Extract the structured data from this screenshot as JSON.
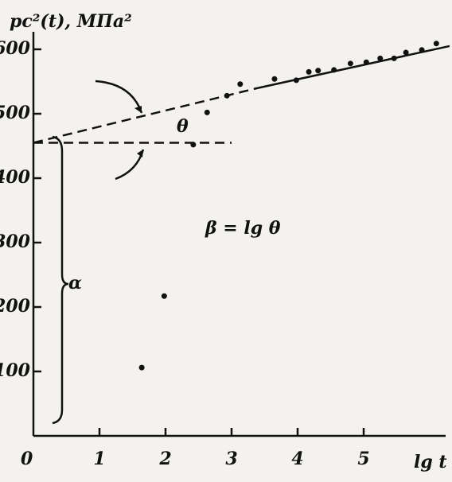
{
  "chart_data": {
    "type": "scatter",
    "y_label": "pc²(t), МПа²",
    "x_label": "lg t",
    "origin_label": "0",
    "x": [
      1.64,
      1.98,
      2.42,
      2.63,
      2.93,
      3.13,
      3.65,
      3.98,
      4.17,
      4.31,
      4.55,
      4.8,
      5.04,
      5.25,
      5.46,
      5.64,
      5.88,
      6.1
    ],
    "values": [
      106,
      217,
      452,
      502,
      528,
      546,
      554,
      552,
      565,
      567,
      568,
      578,
      580,
      586,
      586,
      595,
      599,
      609
    ],
    "color": "#111",
    "lines": [
      {
        "x": [
          0,
          3.4
        ],
        "y": [
          455,
          540
        ],
        "style": "dashed"
      },
      {
        "x": [
          3.4,
          6.3
        ],
        "y": [
          540,
          605
        ],
        "style": "solid"
      },
      {
        "x": [
          0,
          3.0
        ],
        "y": [
          455,
          455
        ],
        "style": "dashed"
      }
    ],
    "annotations": {
      "theta": "θ",
      "beta": "β = lg θ",
      "alpha": "α"
    },
    "xlim": [
      0,
      6.5
    ],
    "ylim": [
      0,
      620
    ],
    "xticks": [
      1,
      2,
      3,
      4,
      5
    ],
    "yticks": [
      100,
      200,
      300,
      400,
      500,
      600
    ]
  }
}
